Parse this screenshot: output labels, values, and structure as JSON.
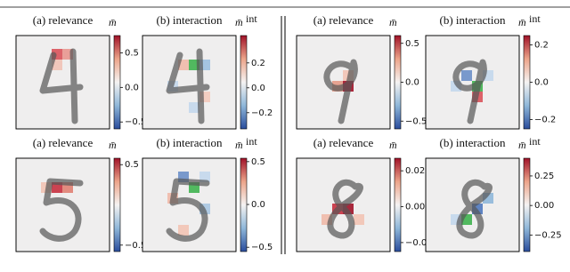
{
  "panels": [
    {
      "title": "(a) relevance",
      "colorbar": {
        "label": "m̄",
        "lim": [
          -0.6,
          0.75
        ],
        "ticks": [
          0.5,
          {
            "value": 0,
            "label": "0.0"
          },
          {
            "value": -0.5,
            "label": "−0.5"
          }
        ]
      }
    },
    {
      "title": "(b) interaction",
      "colorbar": {
        "label": "m̄",
        "label_sup": "int",
        "lim": [
          -0.33,
          0.42
        ],
        "ticks": [
          0.2,
          {
            "value": 0,
            "label": "0.0"
          },
          {
            "value": -0.2,
            "label": "−0.2"
          }
        ]
      }
    },
    {
      "title": "(a) relevance",
      "colorbar": {
        "label": "m̄",
        "lim": [
          -0.58,
          0.58
        ],
        "ticks": [
          0.5,
          {
            "value": -0.5,
            "label": "−0.5"
          }
        ]
      }
    },
    {
      "title": "(b) interaction",
      "colorbar": {
        "label": "m̄",
        "label_sup": "int",
        "lim": [
          -0.55,
          0.54
        ],
        "ticks": [
          0.5,
          {
            "value": 0,
            "label": "0.0"
          },
          {
            "value": -0.5,
            "label": "−0.5"
          }
        ]
      }
    },
    {
      "title": "(a) relevance",
      "colorbar": {
        "label": "m̄",
        "lim": [
          -0.6,
          0.6
        ],
        "ticks": [
          0.5,
          {
            "value": 0,
            "label": "0.0"
          },
          {
            "value": -0.5,
            "label": "−0.5"
          }
        ]
      }
    },
    {
      "title": "(b) interaction",
      "colorbar": {
        "label": "m̄",
        "label_sup": "int",
        "lim": [
          -0.25,
          0.25
        ],
        "ticks": [
          0.2,
          {
            "value": 0,
            "label": "0.0"
          },
          {
            "value": -0.2,
            "label": "−0.2"
          }
        ]
      }
    },
    {
      "title": "(a) relevance",
      "colorbar": {
        "label": "m̄",
        "lim": [
          -0.025,
          0.027
        ],
        "ticks": [
          0.02,
          {
            "value": 0,
            "label": "0.00"
          },
          {
            "value": -0.02,
            "label": "−0.02"
          }
        ]
      }
    },
    {
      "title": "(b) interaction",
      "colorbar": {
        "label": "m̄",
        "label_sup": "int",
        "lim": [
          -0.39,
          0.4
        ],
        "ticks": [
          0.25,
          {
            "value": 0,
            "label": "0.00"
          },
          {
            "value": -0.25,
            "label": "−0.25"
          }
        ]
      }
    }
  ]
}
